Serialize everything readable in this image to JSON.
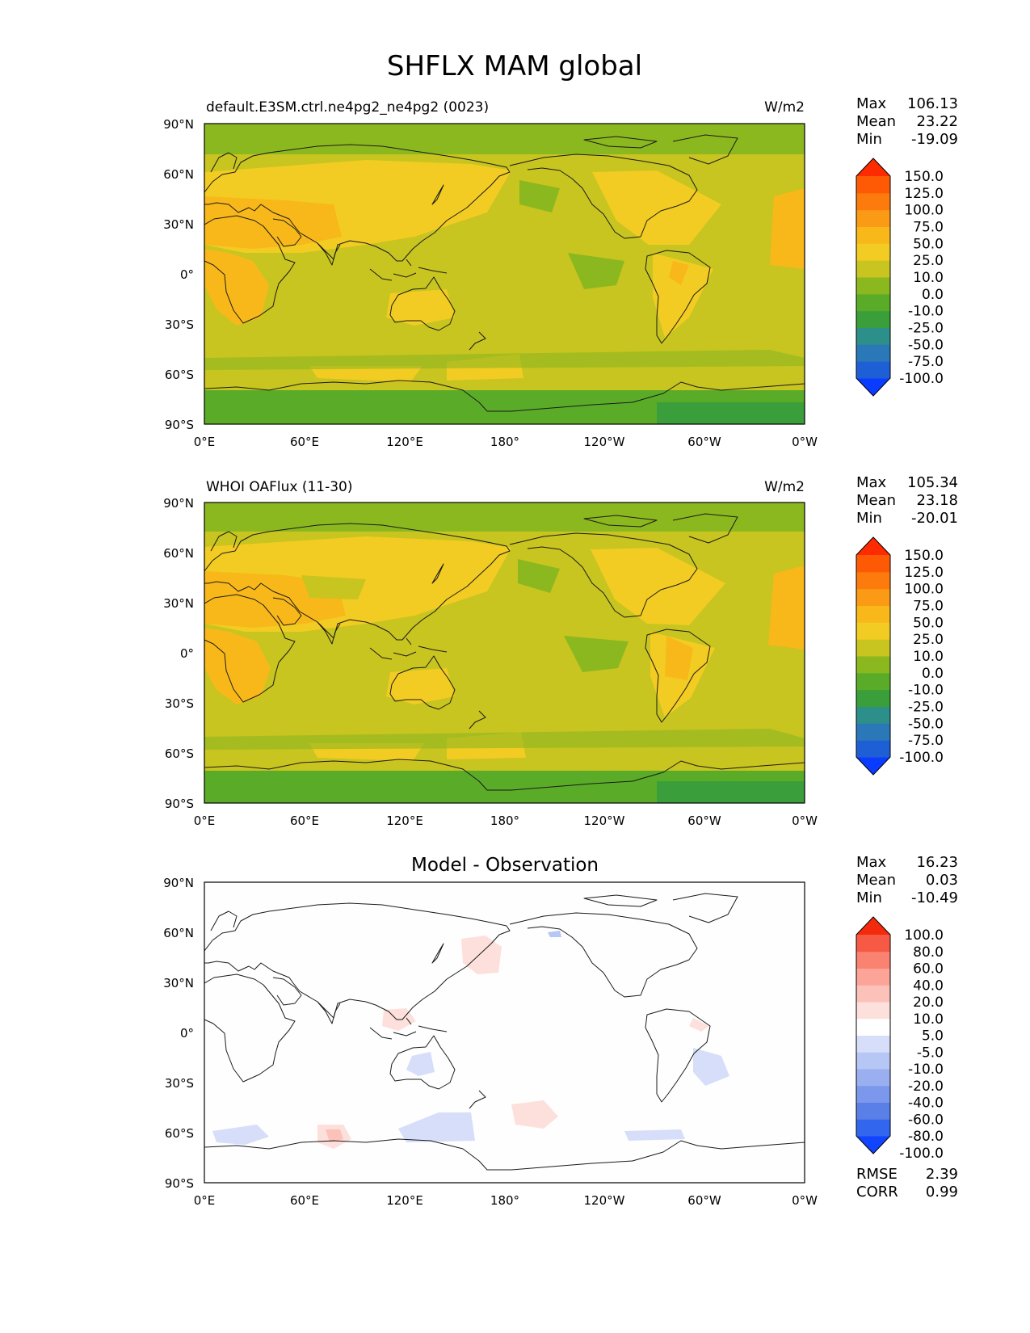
{
  "title": "SHFLX MAM global",
  "tick_labels": {
    "lat": [
      "90°N",
      "60°N",
      "30°N",
      "0°",
      "30°S",
      "60°S",
      "90°S"
    ],
    "lon": [
      "0°E",
      "60°E",
      "120°E",
      "180°",
      "120°W",
      "60°W",
      "0°W"
    ]
  },
  "colors": {
    "main_levels": [
      "#0a3cff",
      "#1f5fd6",
      "#2a78b8",
      "#2d8f8a",
      "#3a9e3a",
      "#5aac28",
      "#8cb81f",
      "#c8c420",
      "#f2cc22",
      "#f9b81a",
      "#fb9a14",
      "#fd7a0c",
      "#fe5a06",
      "#ff2b00"
    ],
    "diff_levels": [
      "#1144ff",
      "#3366ee",
      "#5a80e8",
      "#7b98ec",
      "#99aff0",
      "#b6c6f5",
      "#d6def9",
      "#ffffff",
      "#fde0dc",
      "#fcc2ba",
      "#fba497",
      "#fa8270",
      "#f75a44",
      "#f42a0e"
    ]
  },
  "panels": [
    {
      "id": "test",
      "title_left": "default.E3SM.ctrl.ne4pg2_ne4pg2 (0023)",
      "title_center": "",
      "units": "W/m2",
      "stats": {
        "labels": [
          "Max",
          "Mean",
          "Min"
        ],
        "values": [
          "106.13",
          "23.22",
          "-19.09"
        ]
      },
      "colorbar_ticks": [
        "150.0",
        "125.0",
        "100.0",
        "75.0",
        "50.0",
        "25.0",
        "10.0",
        "0.0",
        "-10.0",
        "-25.0",
        "-50.0",
        "-75.0",
        "-100.0"
      ]
    },
    {
      "id": "reference",
      "title_left": "WHOI OAFlux (11-30)",
      "title_center": "",
      "units": "W/m2",
      "stats": {
        "labels": [
          "Max",
          "Mean",
          "Min"
        ],
        "values": [
          "105.34",
          "23.18",
          "-20.01"
        ]
      },
      "colorbar_ticks": [
        "150.0",
        "125.0",
        "100.0",
        "75.0",
        "50.0",
        "25.0",
        "10.0",
        "0.0",
        "-10.0",
        "-25.0",
        "-50.0",
        "-75.0",
        "-100.0"
      ]
    },
    {
      "id": "difference",
      "title_left": "",
      "title_center": "Model - Observation",
      "units": "",
      "stats": {
        "labels": [
          "Max",
          "Mean",
          "Min"
        ],
        "values": [
          "16.23",
          "0.03",
          "-10.49"
        ]
      },
      "colorbar_ticks": [
        "100.0",
        "80.0",
        "60.0",
        "40.0",
        "20.0",
        "10.0",
        "5.0",
        "-5.0",
        "-10.0",
        "-20.0",
        "-40.0",
        "-60.0",
        "-80.0",
        "-100.0"
      ],
      "metrics": {
        "labels": [
          "RMSE",
          "CORR"
        ],
        "values": [
          "2.39",
          "0.99"
        ]
      }
    }
  ]
}
